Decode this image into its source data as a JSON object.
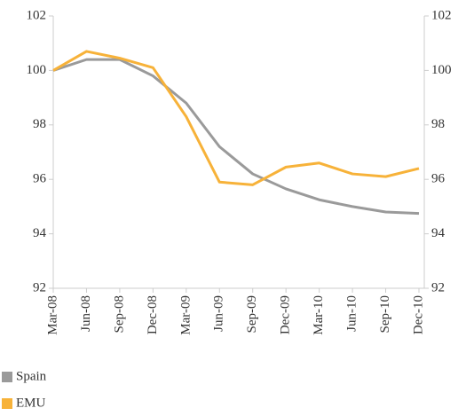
{
  "chart_data": {
    "type": "line",
    "categories": [
      "Mar-08",
      "Jun-08",
      "Sep-08",
      "Dec-08",
      "Mar-09",
      "Jun-09",
      "Sep-09",
      "Dec-09",
      "Mar-10",
      "Jun-10",
      "Sep-10",
      "Dec-10"
    ],
    "series": [
      {
        "name": "Spain",
        "color": "#9a9a9a",
        "values": [
          100,
          100.4,
          100.4,
          99.8,
          98.8,
          97.2,
          96.2,
          95.65,
          95.25,
          95.0,
          94.8,
          94.75
        ]
      },
      {
        "name": "EMU",
        "color": "#f7b239",
        "values": [
          100,
          100.7,
          100.45,
          100.1,
          98.3,
          95.9,
          95.8,
          96.45,
          96.6,
          96.2,
          96.1,
          96.4
        ]
      }
    ],
    "ylim": [
      92,
      102
    ],
    "yticks": [
      92,
      94,
      96,
      98,
      100,
      102
    ],
    "y2lim": [
      92,
      102
    ],
    "y2ticks": [
      92,
      94,
      96,
      98,
      100,
      102
    ],
    "legend": "bottom-left"
  }
}
